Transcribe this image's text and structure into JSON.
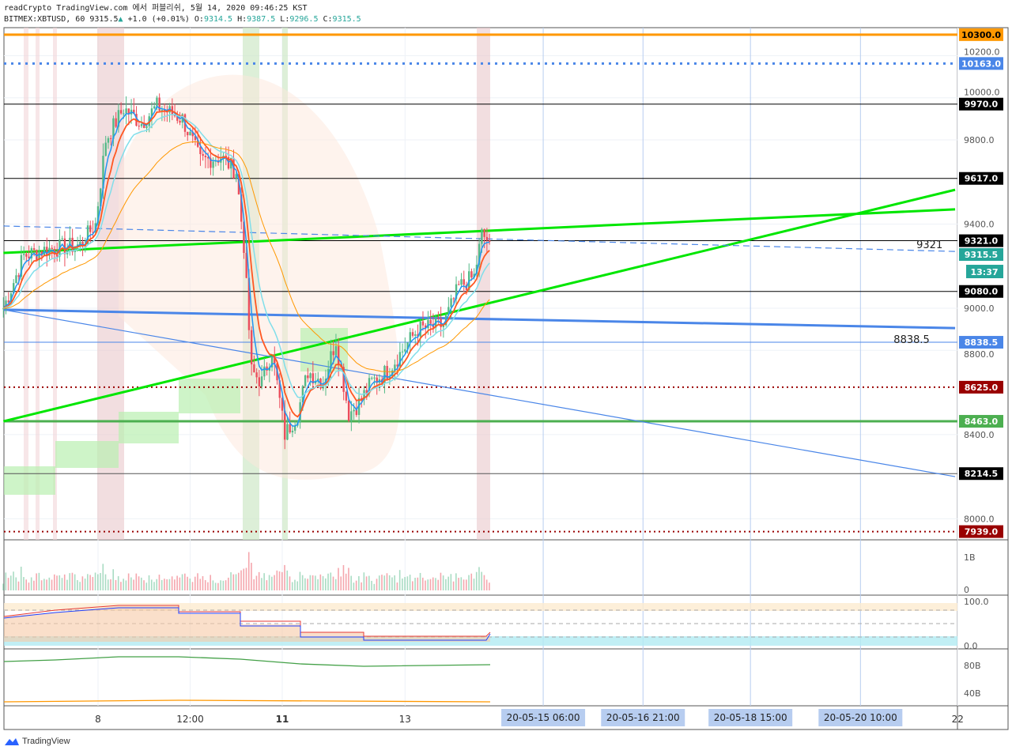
{
  "header": {
    "publish_line": "readCrypto TradingView.com 에서 퍼블리쉬, 5월 14, 2020 09:46:25 KST",
    "symbol": "BITMEX:XBTUSD, 60",
    "last": "9315.5",
    "change": "+1.0 (+0.01%)",
    "o_label": "O:",
    "o": "9314.5",
    "h_label": "H:",
    "h": "9387.5",
    "l_label": "L:",
    "l": "9296.5",
    "c_label": "C:",
    "c": "9315.5"
  },
  "footer": {
    "brand": "TradingView"
  },
  "colors": {
    "up": "#53b987",
    "down": "#eb4d5c",
    "trend_green": "#00e600",
    "trend_blue": "#4a86e8",
    "orange": "#ff9800"
  },
  "chart_data": {
    "type": "candlestick",
    "interval": "60",
    "ylim": [
      7900,
      10330
    ],
    "y_ticks": [
      "10200.0",
      "10000.0",
      "9800.0",
      "9400.0",
      "9000.0",
      "8800.0",
      "8400.0",
      "8000.0"
    ],
    "y_tick_values": [
      10200,
      10000,
      9800,
      9400,
      9000,
      8800,
      8400,
      8000
    ],
    "x_ticks": [
      {
        "label": "8",
        "time": "05-08 00:00",
        "bold": false
      },
      {
        "label": "12:00",
        "time": "05-09 12:00",
        "bold": false
      },
      {
        "label": "11",
        "time": "05-11 00:00",
        "bold": true
      },
      {
        "label": "13",
        "time": "05-13 00:00",
        "bold": false
      },
      {
        "label": "22",
        "time": "05-22 00:00",
        "bold": false
      }
    ],
    "date_markers": [
      {
        "label": "20-05-15   06:00",
        "time": "05-15 06:00"
      },
      {
        "label": "20-05-16   21:00",
        "time": "05-16 21:00"
      },
      {
        "label": "20-05-18   15:00",
        "time": "05-18 15:00"
      },
      {
        "label": "20-05-20   10:00",
        "time": "05-20 10:00"
      }
    ],
    "price_path": [
      [
        "05-06 11:00",
        9000
      ],
      [
        "05-06 19:00",
        9250
      ],
      [
        "05-07 04:00",
        9280
      ],
      [
        "05-07 17:00",
        9300
      ],
      [
        "05-07 23:00",
        9400
      ],
      [
        "05-08 03:00",
        9800
      ],
      [
        "05-08 10:00",
        9950
      ],
      [
        "05-08 17:00",
        9880
      ],
      [
        "05-08 23:00",
        9960
      ],
      [
        "05-09 09:00",
        9900
      ],
      [
        "05-09 16:00",
        9700
      ],
      [
        "05-10 00:00",
        9720
      ],
      [
        "05-10 06:00",
        9650
      ],
      [
        "05-10 09:00",
        9300
      ],
      [
        "05-10 12:00",
        8700
      ],
      [
        "05-10 16:00",
        8650
      ],
      [
        "05-10 20:00",
        8800
      ],
      [
        "05-11 01:00",
        8400
      ],
      [
        "05-11 06:00",
        8500
      ],
      [
        "05-11 10:00",
        8700
      ],
      [
        "05-11 16:00",
        8650
      ],
      [
        "05-11 21:00",
        8850
      ],
      [
        "05-12 02:00",
        8500
      ],
      [
        "05-12 06:00",
        8550
      ],
      [
        "05-12 11:00",
        8650
      ],
      [
        "05-12 17:00",
        8700
      ],
      [
        "05-12 23:00",
        8800
      ],
      [
        "05-13 05:00",
        8900
      ],
      [
        "05-13 15:00",
        8920
      ],
      [
        "05-13 21:00",
        9100
      ],
      [
        "05-14 03:00",
        9150
      ],
      [
        "05-14 06:00",
        9350
      ],
      [
        "05-14 09:00",
        9315.5
      ]
    ],
    "levels": [
      {
        "price": 10300,
        "label": "10300.0",
        "color": "#ff9800",
        "bg": "#ff9800",
        "fg": "#000000",
        "style": "solid",
        "width": 3
      },
      {
        "price": 10163,
        "label": "10163.0",
        "color": "#4a86e8",
        "bg": "#4a86e8",
        "fg": "#ffffff",
        "style": "dotted",
        "width": 3
      },
      {
        "price": 9970,
        "label": "9970.0",
        "color": "#000000",
        "bg": "#000000",
        "fg": "#ffffff",
        "style": "solid",
        "width": 1
      },
      {
        "price": 9617,
        "label": "9617.0",
        "color": "#000000",
        "bg": "#000000",
        "fg": "#ffffff",
        "style": "solid",
        "width": 1
      },
      {
        "price": 9321,
        "label": "9321.0",
        "color": "#000000",
        "bg": "#000000",
        "fg": "#ffffff",
        "style": "solid",
        "width": 1
      },
      {
        "price": 9080,
        "label": "9080.0",
        "color": "#000000",
        "bg": "#000000",
        "fg": "#ffffff",
        "style": "solid",
        "width": 1
      },
      {
        "price": 8838.5,
        "label": "8838.5",
        "color": "#4a86e8",
        "bg": "#4a86e8",
        "fg": "#ffffff",
        "style": "solid",
        "width": 1
      },
      {
        "price": 8625,
        "label": "8625.0",
        "color": "#990000",
        "bg": "#990000",
        "fg": "#ffffff",
        "style": "dotted",
        "width": 2
      },
      {
        "price": 8463,
        "label": "8463.0",
        "color": "#4caf50",
        "bg": "#4caf50",
        "fg": "#ffffff",
        "style": "solid",
        "width": 3
      },
      {
        "price": 8214.5,
        "label": "8214.5",
        "color": "#555555",
        "bg": "#000000",
        "fg": "#ffffff",
        "style": "solid",
        "width": 1
      },
      {
        "price": 7939,
        "label": "7939.0",
        "color": "#990000",
        "bg": "#990000",
        "fg": "#ffffff",
        "style": "dotted",
        "width": 2
      }
    ],
    "current_price": {
      "label": "9315.5",
      "price": 9315.5,
      "countdown": "13:37",
      "color": "#26a69a"
    },
    "annotations": [
      {
        "text": "9321",
        "time": "05-21 13:00",
        "price": 9300
      },
      {
        "text": "8838.5",
        "time": "05-21 06:00",
        "price": 8850
      }
    ],
    "trendlines": [
      {
        "from": [
          "05-06 11:00",
          9263
        ],
        "to": [
          "05-21 23:00",
          9470
        ],
        "color": "#00e600",
        "width": 3
      },
      {
        "from": [
          "05-06 11:00",
          8463
        ],
        "to": [
          "05-21 23:00",
          9563
        ],
        "color": "#00e600",
        "width": 3
      },
      {
        "from": [
          "05-06 11:00",
          8993
        ],
        "to": [
          "05-21 23:00",
          8906
        ],
        "color": "#4a86e8",
        "width": 3
      },
      {
        "from": [
          "05-06 11:00",
          8993
        ],
        "to": [
          "05-21 23:00",
          8200
        ],
        "color": "#4a86e8",
        "width": 1.2
      },
      {
        "from": [
          "05-06 11:00",
          9391
        ],
        "to": [
          "05-21 23:00",
          9270
        ],
        "color": "#4a86e8",
        "width": 1.2,
        "dash": true
      }
    ],
    "volume_pane": {
      "ticks": [
        "1B",
        "0"
      ]
    },
    "oscillator_pane": {
      "ticks": [
        "100.0",
        "0.0"
      ]
    },
    "lower_pane": {
      "ticks": [
        "80B",
        "40B"
      ]
    }
  }
}
